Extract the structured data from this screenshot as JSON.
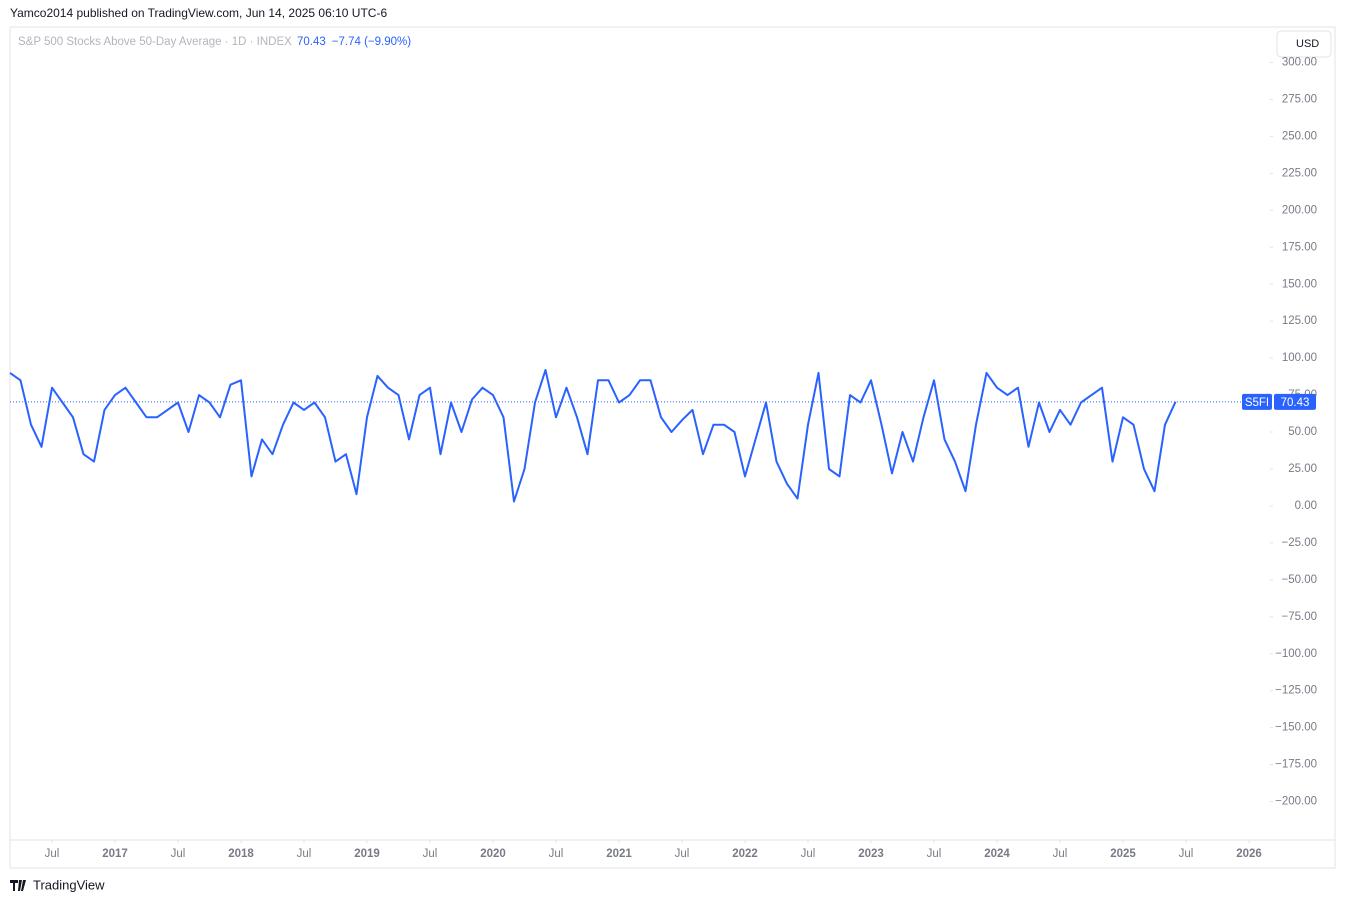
{
  "header": {
    "attribution": "Yamco2014 published on TradingView.com, Jun 14, 2025 06:10 UTC-6",
    "currency": "USD",
    "change": "−7.74 (−9.90%)",
    "brand": "TradingView"
  },
  "chart_data": {
    "type": "line",
    "title": "S&P 500 Stocks Above 50-Day Average · 1D · INDEX",
    "grid": false,
    "x": [
      "2016-03",
      "2016-04",
      "2016-05",
      "2016-06",
      "2016-07",
      "2016-08",
      "2016-09",
      "2016-10",
      "2016-11",
      "2016-12",
      "2017-01",
      "2017-02",
      "2017-03",
      "2017-04",
      "2017-05",
      "2017-06",
      "2017-07",
      "2017-08",
      "2017-09",
      "2017-10",
      "2017-11",
      "2017-12",
      "2018-01",
      "2018-02",
      "2018-03",
      "2018-04",
      "2018-05",
      "2018-06",
      "2018-07",
      "2018-08",
      "2018-09",
      "2018-10",
      "2018-11",
      "2018-12",
      "2019-01",
      "2019-02",
      "2019-03",
      "2019-04",
      "2019-05",
      "2019-06",
      "2019-07",
      "2019-08",
      "2019-09",
      "2019-10",
      "2019-11",
      "2019-12",
      "2020-01",
      "2020-02",
      "2020-03",
      "2020-04",
      "2020-05",
      "2020-06",
      "2020-07",
      "2020-08",
      "2020-09",
      "2020-10",
      "2020-11",
      "2020-12",
      "2021-01",
      "2021-02",
      "2021-03",
      "2021-04",
      "2021-05",
      "2021-06",
      "2021-07",
      "2021-08",
      "2021-09",
      "2021-10",
      "2021-11",
      "2021-12",
      "2022-01",
      "2022-02",
      "2022-03",
      "2022-04",
      "2022-05",
      "2022-06",
      "2022-07",
      "2022-08",
      "2022-09",
      "2022-10",
      "2022-11",
      "2022-12",
      "2023-01",
      "2023-02",
      "2023-03",
      "2023-04",
      "2023-05",
      "2023-06",
      "2023-07",
      "2023-08",
      "2023-09",
      "2023-10",
      "2023-11",
      "2023-12",
      "2024-01",
      "2024-02",
      "2024-03",
      "2024-04",
      "2024-05",
      "2024-06",
      "2024-07",
      "2024-08",
      "2024-09",
      "2024-10",
      "2024-11",
      "2024-12",
      "2025-01",
      "2025-02",
      "2025-03",
      "2025-04",
      "2025-05",
      "2025-06"
    ],
    "series": [
      {
        "name": "S5FI",
        "color": "#2962ff",
        "values": [
          90,
          85,
          55,
          40,
          80,
          70,
          60,
          35,
          30,
          65,
          75,
          80,
          70,
          60,
          60,
          65,
          70,
          50,
          75,
          70,
          60,
          82,
          85,
          20,
          45,
          35,
          55,
          70,
          65,
          70,
          60,
          30,
          35,
          8,
          60,
          88,
          80,
          75,
          45,
          75,
          80,
          35,
          70,
          50,
          72,
          80,
          75,
          60,
          3,
          25,
          70,
          92,
          60,
          80,
          60,
          35,
          85,
          85,
          70,
          75,
          85,
          85,
          60,
          50,
          58,
          65,
          35,
          55,
          55,
          50,
          20,
          45,
          70,
          30,
          15,
          5,
          55,
          90,
          25,
          20,
          75,
          70,
          85,
          55,
          22,
          50,
          30,
          60,
          85,
          45,
          30,
          10,
          55,
          90,
          80,
          75,
          80,
          40,
          70,
          50,
          65,
          55,
          70,
          75,
          80,
          30,
          60,
          55,
          25,
          10,
          55,
          70.43
        ]
      }
    ],
    "xlim": [
      "2016-03",
      "2026-03"
    ],
    "xticks": [
      {
        "value": "2016-07",
        "label": "Jul"
      },
      {
        "value": "2017-01",
        "label": "2017"
      },
      {
        "value": "2017-07",
        "label": "Jul"
      },
      {
        "value": "2018-01",
        "label": "2018"
      },
      {
        "value": "2018-07",
        "label": "Jul"
      },
      {
        "value": "2019-01",
        "label": "2019"
      },
      {
        "value": "2019-07",
        "label": "Jul"
      },
      {
        "value": "2020-01",
        "label": "2020"
      },
      {
        "value": "2020-07",
        "label": "Jul"
      },
      {
        "value": "2021-01",
        "label": "2021"
      },
      {
        "value": "2021-07",
        "label": "Jul"
      },
      {
        "value": "2022-01",
        "label": "2022"
      },
      {
        "value": "2022-07",
        "label": "Jul"
      },
      {
        "value": "2023-01",
        "label": "2023"
      },
      {
        "value": "2023-07",
        "label": "Jul"
      },
      {
        "value": "2024-01",
        "label": "2024"
      },
      {
        "value": "2024-07",
        "label": "Jul"
      },
      {
        "value": "2025-01",
        "label": "2025"
      },
      {
        "value": "2025-07",
        "label": "Jul"
      },
      {
        "value": "2026-01",
        "label": "2026"
      }
    ],
    "ylim": [
      -226,
      322
    ],
    "yticks": [
      {
        "value": 300,
        "label": "300.00"
      },
      {
        "value": 275,
        "label": "275.00"
      },
      {
        "value": 250,
        "label": "250.00"
      },
      {
        "value": 225,
        "label": "225.00"
      },
      {
        "value": 200,
        "label": "200.00"
      },
      {
        "value": 175,
        "label": "175.00"
      },
      {
        "value": 150,
        "label": "150.00"
      },
      {
        "value": 125,
        "label": "125.00"
      },
      {
        "value": 100,
        "label": "100.00"
      },
      {
        "value": 75,
        "label": "75.00"
      },
      {
        "value": 50,
        "label": "50.00"
      },
      {
        "value": 25,
        "label": "25.00"
      },
      {
        "value": 0,
        "label": "0.00"
      },
      {
        "value": -25,
        "label": "−25.00"
      },
      {
        "value": -50,
        "label": "−50.00"
      },
      {
        "value": -75,
        "label": "−75.00"
      },
      {
        "value": -100,
        "label": "−100.00"
      },
      {
        "value": -125,
        "label": "−125.00"
      },
      {
        "value": -150,
        "label": "−150.00"
      },
      {
        "value": -175,
        "label": "−175.00"
      },
      {
        "value": -200,
        "label": "−200.00"
      }
    ]
  }
}
